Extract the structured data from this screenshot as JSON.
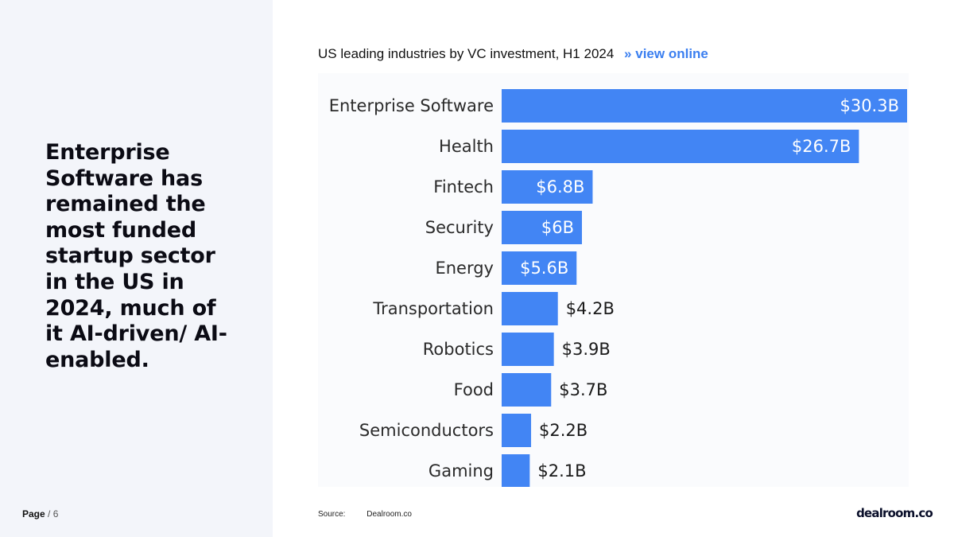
{
  "headline": "Enterprise Software has remained the most funded startup sector in the US in 2024, much of it AI-driven/ AI-enabled.",
  "page": {
    "label": "Page",
    "separator": " / ",
    "number": "6"
  },
  "chart_header": {
    "title": "US leading industries by VC investment, H1 2024",
    "link_arrows": "»",
    "link_label": "view online"
  },
  "source": {
    "label": "Source:",
    "value": "Dealroom.co"
  },
  "brand": {
    "name": "dealroom.co"
  },
  "colors": {
    "bar": "#4285f4",
    "panel_bg": "#f3f5fa",
    "link": "#3b7ff0"
  },
  "chart_data": {
    "type": "bar",
    "orientation": "horizontal",
    "title": "US leading industries by VC investment, H1 2024",
    "unit": "$B",
    "categories": [
      "Enterprise Software",
      "Health",
      "Fintech",
      "Security",
      "Energy",
      "Transportation",
      "Robotics",
      "Food",
      "Semiconductors",
      "Gaming"
    ],
    "values": [
      30.3,
      26.7,
      6.8,
      6,
      5.6,
      4.2,
      3.9,
      3.7,
      2.2,
      2.1
    ],
    "value_labels": [
      "$30.3B",
      "$26.7B",
      "$6.8B",
      "$6B",
      "$5.6B",
      "$4.2B",
      "$3.9B",
      "$3.7B",
      "$2.2B",
      "$2.1B"
    ],
    "xlim": [
      0,
      30.3
    ],
    "grid": false,
    "legend": "none"
  }
}
